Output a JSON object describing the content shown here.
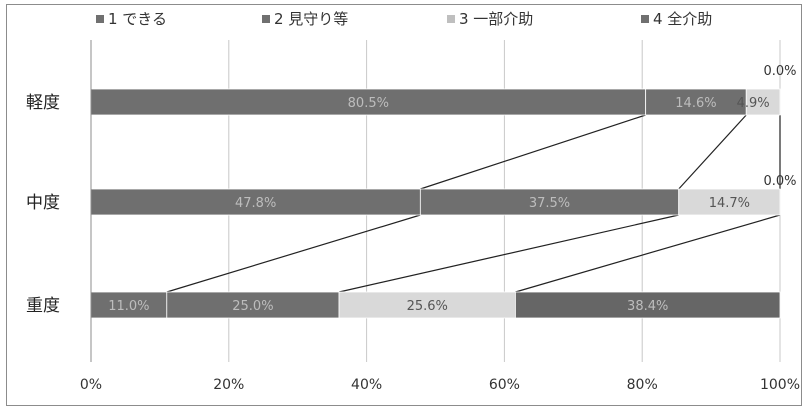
{
  "chart_data": {
    "type": "bar",
    "orientation": "horizontal",
    "stacked": true,
    "percent_stacked": true,
    "categories": [
      "軽度",
      "中度",
      "重度"
    ],
    "series": [
      {
        "name": "1 できる",
        "values": [
          80.5,
          47.8,
          11.0
        ],
        "labels": [
          "80.5%",
          "47.8%",
          "11.0%"
        ],
        "color": "#6f6f6f"
      },
      {
        "name": "2 見守り等",
        "values": [
          14.6,
          37.5,
          25.0
        ],
        "labels": [
          "14.6%",
          "37.5%",
          "25.0%"
        ],
        "color": "#6f6f6f"
      },
      {
        "name": "3 一部介助",
        "values": [
          4.9,
          14.7,
          25.6
        ],
        "labels": [
          "4.9%",
          "14.7%",
          "25.6%"
        ],
        "color": "#d9d9d9"
      },
      {
        "name": "4 全介助",
        "values": [
          0.0,
          0.0,
          38.4
        ],
        "labels": [
          "0.0%",
          "0.0%",
          "38.4%"
        ],
        "color": "#666666"
      }
    ],
    "x_ticks": [
      "0%",
      "20%",
      "40%",
      "60%",
      "80%",
      "100%"
    ],
    "xlim": [
      0,
      100
    ],
    "grid": "vertical",
    "legend": "top",
    "series_lines": true,
    "title": "",
    "xlabel": "",
    "ylabel": ""
  }
}
